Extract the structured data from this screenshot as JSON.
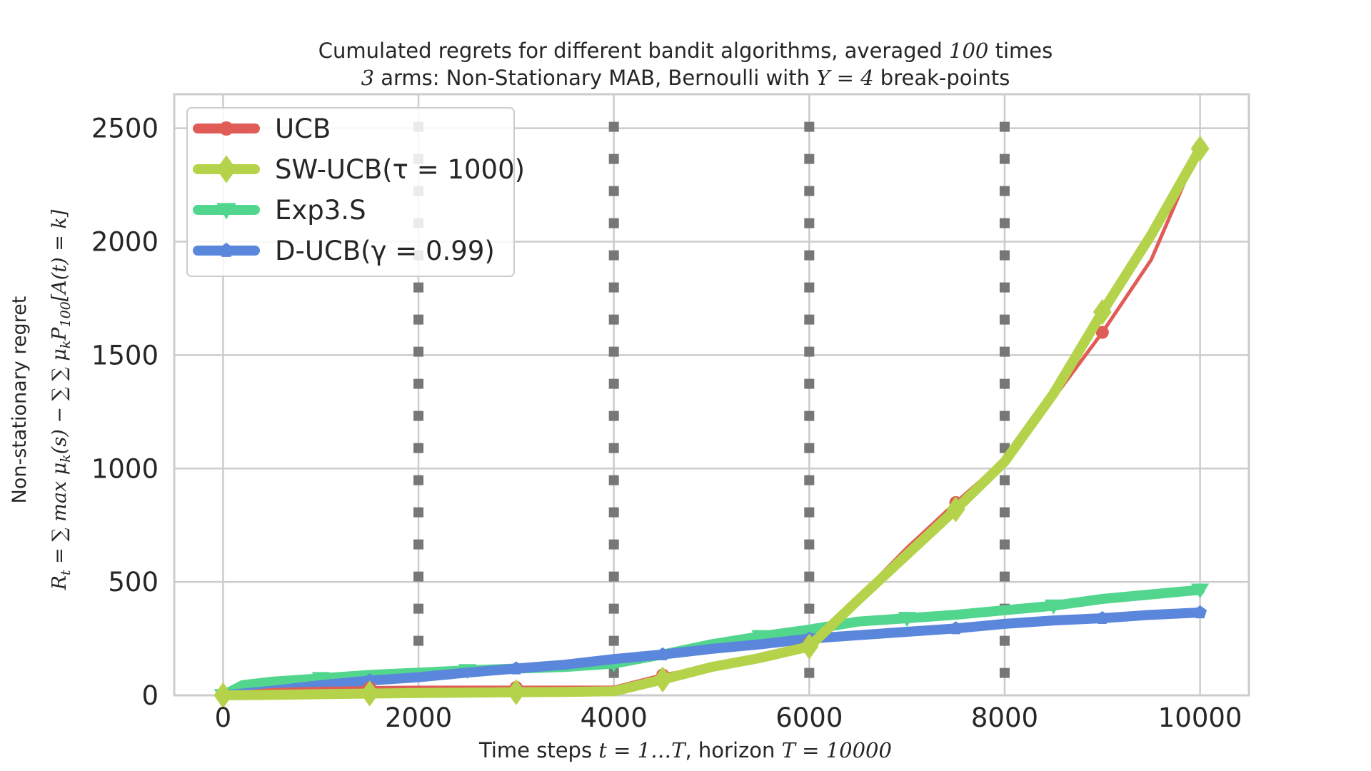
{
  "chart_data": {
    "type": "line",
    "title": "Cumulated regrets for different bandit algorithms, averaged 100 times",
    "subtitle": "3 arms: Non-Stationary MAB, Bernoulli with Υ = 4 break-points",
    "xlabel": "Time steps t = 1…T, horizon T = 10000",
    "ylabel": "Non-stationary regret  R_t = ∑_{s=1}^{t} max_k μ_k(s) − ∑_{s=1}^{t} ∑_{k=1}^{3} μ_k P_100[A(t) = k]",
    "xlim": [
      -500,
      10500
    ],
    "ylim": [
      0,
      2650
    ],
    "xticks": [
      "0",
      "2000",
      "4000",
      "6000",
      "8000",
      "10000"
    ],
    "yticks": [
      "0",
      "500",
      "1000",
      "1500",
      "2000",
      "2500"
    ],
    "grid": true,
    "legend_position": "top-left",
    "break_points": [
      2000,
      4000,
      6000,
      8000
    ],
    "series": [
      {
        "name": "UCB",
        "color": "#e05c57",
        "marker": "circle",
        "x": [
          0,
          500,
          1000,
          1500,
          2000,
          2500,
          3000,
          3500,
          4000,
          4500,
          5000,
          5500,
          6000,
          6500,
          7000,
          7500,
          8000,
          8500,
          9000,
          9500,
          10000
        ],
        "y": [
          5,
          25,
          30,
          33,
          35,
          35,
          35,
          35,
          35,
          90,
          125,
          180,
          230,
          430,
          650,
          850,
          1040,
          1310,
          1600,
          1920,
          2420
        ]
      },
      {
        "name": "SW-UCB(τ = 1000)",
        "color": "#b5d34a",
        "marker": "diamond",
        "x": [
          0,
          500,
          1000,
          1500,
          2000,
          2500,
          3000,
          3500,
          4000,
          4500,
          5000,
          5500,
          6000,
          6500,
          7000,
          7500,
          8000,
          8500,
          9000,
          9500,
          10000
        ],
        "y": [
          0,
          2,
          5,
          8,
          10,
          12,
          14,
          15,
          18,
          70,
          125,
          165,
          215,
          420,
          620,
          820,
          1030,
          1330,
          1690,
          2030,
          2410
        ]
      },
      {
        "name": "Exp3.S",
        "color": "#52d68e",
        "marker": "triangle-down",
        "x": [
          0,
          200,
          500,
          1000,
          1500,
          2000,
          2500,
          3000,
          3500,
          4000,
          4500,
          5000,
          5500,
          6000,
          6500,
          7000,
          7500,
          8000,
          8500,
          9000,
          9500,
          10000
        ],
        "y": [
          0,
          45,
          60,
          75,
          90,
          100,
          110,
          118,
          125,
          140,
          180,
          225,
          260,
          290,
          325,
          340,
          355,
          375,
          395,
          425,
          445,
          465
        ]
      },
      {
        "name": "D-UCB(γ = 0.99)",
        "color": "#5a87dc",
        "marker": "pentagon",
        "x": [
          0,
          500,
          1000,
          1500,
          2000,
          2500,
          3000,
          3500,
          4000,
          4500,
          5000,
          5500,
          6000,
          6500,
          7000,
          7500,
          8000,
          8500,
          9000,
          9500,
          10000
        ],
        "y": [
          0,
          20,
          45,
          65,
          80,
          100,
          118,
          135,
          160,
          180,
          205,
          225,
          250,
          265,
          280,
          295,
          315,
          330,
          340,
          355,
          365
        ]
      }
    ]
  }
}
